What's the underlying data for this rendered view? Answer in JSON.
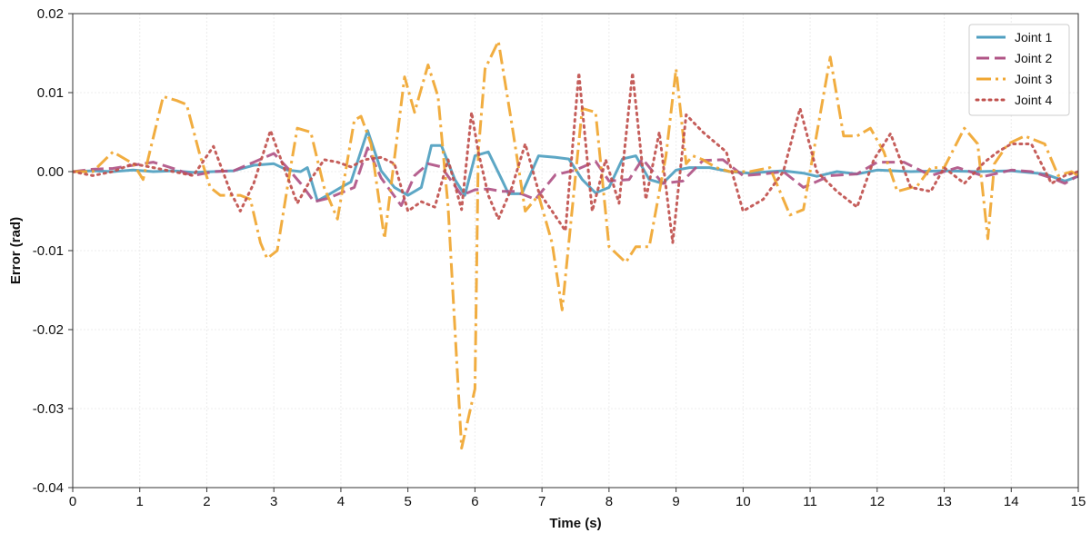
{
  "chart_data": {
    "type": "line",
    "title": "",
    "xlabel": "Time (s)",
    "ylabel": "Error (rad)",
    "xlim": [
      0,
      15
    ],
    "ylim": [
      -0.04,
      0.02
    ],
    "xticks": [
      0,
      1,
      2,
      3,
      4,
      5,
      6,
      7,
      8,
      9,
      10,
      11,
      12,
      13,
      14,
      15
    ],
    "xtick_labels": [
      "0",
      "1",
      "2",
      "3",
      "4",
      "5",
      "6",
      "7",
      "8",
      "9",
      "10",
      "11",
      "12",
      "13",
      "14",
      "15"
    ],
    "yticks": [
      -0.04,
      -0.03,
      -0.02,
      -0.01,
      0,
      0.01,
      0.02
    ],
    "ytick_labels": [
      "-0.04",
      "-0.03",
      "-0.02",
      "-0.01",
      "0.00",
      "0.01",
      "0.02"
    ],
    "grid": true,
    "legend_position": "top-right",
    "series": [
      {
        "name": "Joint 1",
        "color": "#4f9fc0",
        "dash": "solid",
        "x": [
          0,
          0.3,
          0.6,
          0.9,
          1.2,
          1.5,
          1.8,
          2.1,
          2.4,
          2.7,
          3.0,
          3.2,
          3.4,
          3.5,
          3.65,
          3.8,
          4.0,
          4.15,
          4.4,
          4.6,
          4.8,
          5.0,
          5.2,
          5.35,
          5.5,
          5.7,
          5.85,
          6.0,
          6.2,
          6.4,
          6.5,
          6.7,
          6.95,
          7.2,
          7.4,
          7.6,
          7.8,
          8.0,
          8.2,
          8.4,
          8.6,
          8.8,
          9.0,
          9.2,
          9.5,
          9.8,
          10.1,
          10.4,
          10.6,
          10.9,
          11.1,
          11.4,
          11.7,
          12.0,
          12.5,
          13.0,
          13.5,
          14.0,
          14.5,
          14.8,
          15.0
        ],
        "values": [
          0,
          0.0001,
          0,
          0.0002,
          0,
          0.0001,
          -0.0001,
          0,
          0.0001,
          0.0008,
          0.001,
          0.0002,
          0,
          0.0005,
          -0.0037,
          -0.003,
          -0.002,
          -0.0013,
          0.0052,
          0.0001,
          -0.002,
          -0.003,
          -0.002,
          0.0033,
          0.0033,
          -0.001,
          -0.003,
          0.002,
          0.0025,
          -0.001,
          -0.0028,
          -0.0028,
          0.002,
          0.0018,
          0.0016,
          -0.001,
          -0.0027,
          -0.002,
          0.0016,
          0.002,
          -0.001,
          -0.0015,
          0.0002,
          0.0005,
          0.0005,
          0,
          -0.0002,
          0,
          0.0001,
          -0.0002,
          -0.0006,
          0,
          -0.0003,
          0.0002,
          0,
          0.0001,
          0,
          0.0001,
          -0.0003,
          -0.0012,
          -0.0006
        ]
      },
      {
        "name": "Joint 2",
        "color": "#b05486",
        "dash": "dashed",
        "x": [
          0,
          0.3,
          0.6,
          0.9,
          1.2,
          1.5,
          1.8,
          2.1,
          2.4,
          2.7,
          3.0,
          3.2,
          3.4,
          3.6,
          3.8,
          4.0,
          4.2,
          4.4,
          4.6,
          4.9,
          5.1,
          5.3,
          5.5,
          5.8,
          6.0,
          6.2,
          6.4,
          6.6,
          6.9,
          7.2,
          7.5,
          7.8,
          8.0,
          8.3,
          8.5,
          8.8,
          9.1,
          9.4,
          9.7,
          10.0,
          10.3,
          10.6,
          10.9,
          11.3,
          11.7,
          12.0,
          12.4,
          12.8,
          13.2,
          13.6,
          14.0,
          14.3,
          14.6,
          14.8,
          15.0
        ],
        "values": [
          0,
          0.0003,
          0.0004,
          0.0008,
          0.0012,
          0.0004,
          -0.0005,
          0,
          0.0001,
          0.0012,
          0.0023,
          0.0005,
          -0.0015,
          -0.0038,
          -0.0034,
          -0.0027,
          -0.002,
          0.003,
          -0.0008,
          -0.0043,
          -0.0005,
          0.001,
          0.0006,
          -0.003,
          -0.0023,
          -0.0022,
          -0.0025,
          -0.0025,
          -0.0035,
          -0.0004,
          0.0002,
          0.0013,
          -0.0012,
          -0.001,
          0.0016,
          -0.0015,
          -0.0012,
          0.0014,
          0.0015,
          -0.0005,
          -0.0003,
          0,
          -0.002,
          -0.0005,
          -0.0003,
          0.0012,
          0.0012,
          -0.0005,
          0.0005,
          -0.0006,
          0.0002,
          0,
          -0.0008,
          -0.0015,
          -0.0005
        ]
      },
      {
        "name": "Joint 3",
        "color": "#f0a630",
        "dash": "dashdot",
        "x": [
          0,
          0.3,
          0.6,
          0.9,
          1.05,
          1.35,
          1.55,
          1.7,
          1.9,
          2.05,
          2.2,
          2.5,
          2.65,
          2.8,
          2.9,
          3.05,
          3.25,
          3.35,
          3.55,
          3.75,
          3.95,
          4.2,
          4.3,
          4.45,
          4.65,
          4.95,
          5.1,
          5.3,
          5.45,
          5.6,
          5.8,
          6.0,
          6.05,
          6.15,
          6.35,
          6.55,
          6.75,
          6.95,
          7.15,
          7.3,
          7.6,
          7.8,
          8.0,
          8.25,
          8.4,
          8.6,
          8.85,
          9.0,
          9.15,
          9.25,
          9.4,
          9.6,
          9.8,
          10.1,
          10.4,
          10.7,
          10.9,
          11.3,
          11.5,
          11.7,
          11.9,
          12.1,
          12.3,
          12.6,
          12.8,
          13.0,
          13.3,
          13.5,
          13.65,
          13.75,
          13.95,
          14.2,
          14.5,
          14.7,
          14.9,
          15.0
        ],
        "values": [
          0,
          0,
          0.0025,
          0.001,
          -0.001,
          0.0095,
          0.009,
          0.0085,
          0.002,
          -0.002,
          -0.003,
          -0.003,
          -0.0035,
          -0.009,
          -0.011,
          -0.01,
          0.0005,
          0.0055,
          0.005,
          -0.002,
          -0.006,
          0.0065,
          0.007,
          0.0035,
          -0.0085,
          0.012,
          0.0075,
          0.0135,
          0.0095,
          -0.0045,
          -0.035,
          -0.0275,
          0.0025,
          0.013,
          0.0165,
          0.006,
          -0.005,
          -0.003,
          -0.009,
          -0.0175,
          0.008,
          0.0075,
          -0.0095,
          -0.0115,
          -0.0095,
          -0.0095,
          0.002,
          0.013,
          0.001,
          0.002,
          0.0015,
          0.0005,
          0,
          0,
          0.0005,
          -0.0055,
          -0.0048,
          0.0145,
          0.0045,
          0.0045,
          0.0055,
          0.0025,
          -0.0025,
          -0.0018,
          0.0005,
          0.0005,
          0.0055,
          0.0035,
          -0.0085,
          0.001,
          0.0035,
          0.0045,
          0.0035,
          -0.0005,
          0,
          -0.0005
        ]
      },
      {
        "name": "Joint 4",
        "color": "#c0504d",
        "dash": "dotted",
        "x": [
          0,
          0.3,
          0.6,
          0.9,
          1.2,
          1.5,
          1.8,
          2.1,
          2.35,
          2.5,
          2.7,
          2.95,
          3.15,
          3.35,
          3.55,
          3.75,
          3.95,
          4.15,
          4.35,
          4.6,
          4.8,
          5.0,
          5.2,
          5.4,
          5.6,
          5.8,
          5.95,
          6.05,
          6.2,
          6.35,
          6.55,
          6.75,
          6.95,
          7.15,
          7.35,
          7.55,
          7.75,
          7.95,
          8.15,
          8.35,
          8.55,
          8.75,
          8.95,
          9.15,
          9.4,
          9.75,
          10.0,
          10.3,
          10.6,
          10.85,
          11.1,
          11.4,
          11.7,
          11.95,
          12.2,
          12.5,
          12.8,
          13.0,
          13.3,
          13.6,
          13.8,
          14.0,
          14.3,
          14.6,
          14.8,
          15.0
        ],
        "values": [
          0,
          -0.0005,
          0,
          0.001,
          0.0005,
          0,
          -0.0005,
          0.0032,
          -0.0025,
          -0.005,
          -0.0015,
          0.0052,
          0.0005,
          -0.004,
          -0.001,
          0.0015,
          0.0012,
          0.0006,
          0.0015,
          0.0018,
          0.001,
          -0.005,
          -0.0038,
          -0.0045,
          0.0015,
          -0.0048,
          0.0075,
          0.0025,
          -0.003,
          -0.006,
          -0.002,
          0.0035,
          -0.0025,
          -0.005,
          -0.0075,
          0.0125,
          -0.005,
          0.0015,
          -0.004,
          0.0125,
          -0.0035,
          0.005,
          -0.009,
          0.0072,
          0.005,
          0.0025,
          -0.005,
          -0.0035,
          0,
          0.008,
          0,
          -0.0025,
          -0.0045,
          0.0015,
          0.0048,
          -0.002,
          -0.0025,
          0.0005,
          -0.0015,
          0.0012,
          0.0025,
          0.0035,
          0.0035,
          -0.0015,
          -0.0005,
          0
        ]
      }
    ]
  }
}
